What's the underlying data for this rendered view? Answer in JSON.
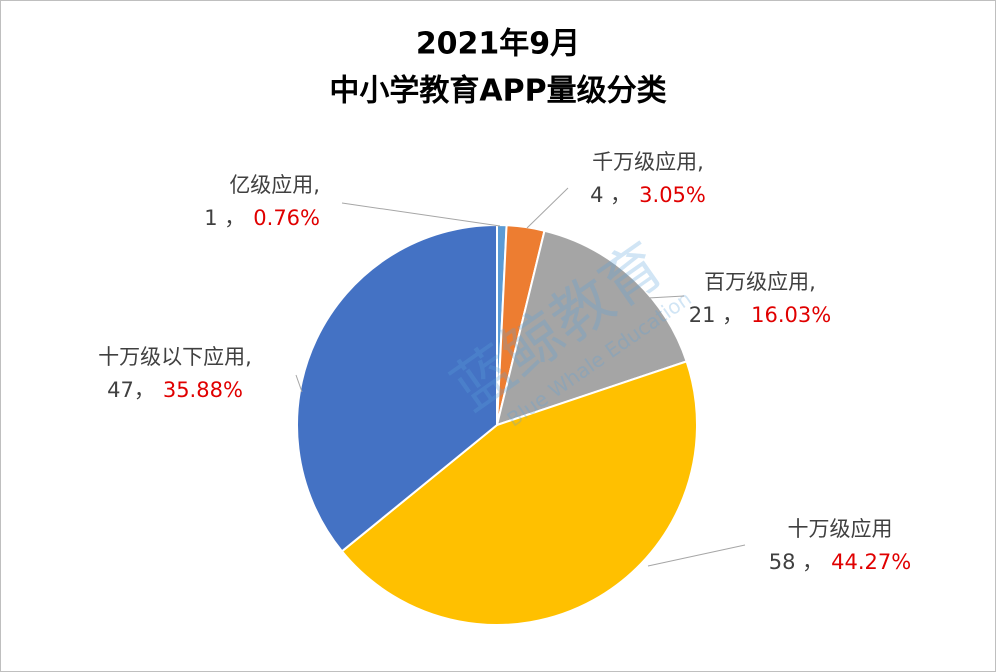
{
  "chart_data": {
    "type": "pie",
    "title": "2021年9月",
    "subtitle": "中小学教育APP量级分类",
    "categories": [
      "亿级应用,",
      "千万级应用,",
      "百万级应用,",
      "十万级应用",
      "十万级以下应用,"
    ],
    "values": [
      1,
      4,
      21,
      58,
      47
    ],
    "value_labels": [
      "1 ，",
      "4 ，",
      "21 ，",
      "58 ，",
      "47，"
    ],
    "percents": [
      0.76,
      3.05,
      16.03,
      44.27,
      35.88
    ],
    "percent_labels": [
      "0.76%",
      "3.05%",
      "16.03%",
      "44.27%",
      "35.88%"
    ],
    "colors": [
      "#5b9bd5",
      "#ed7d31",
      "#a5a5a5",
      "#ffc000",
      "#4472c4"
    ],
    "watermark": "蓝鲸教育",
    "watermark_sub": "Blue Whale Education"
  }
}
